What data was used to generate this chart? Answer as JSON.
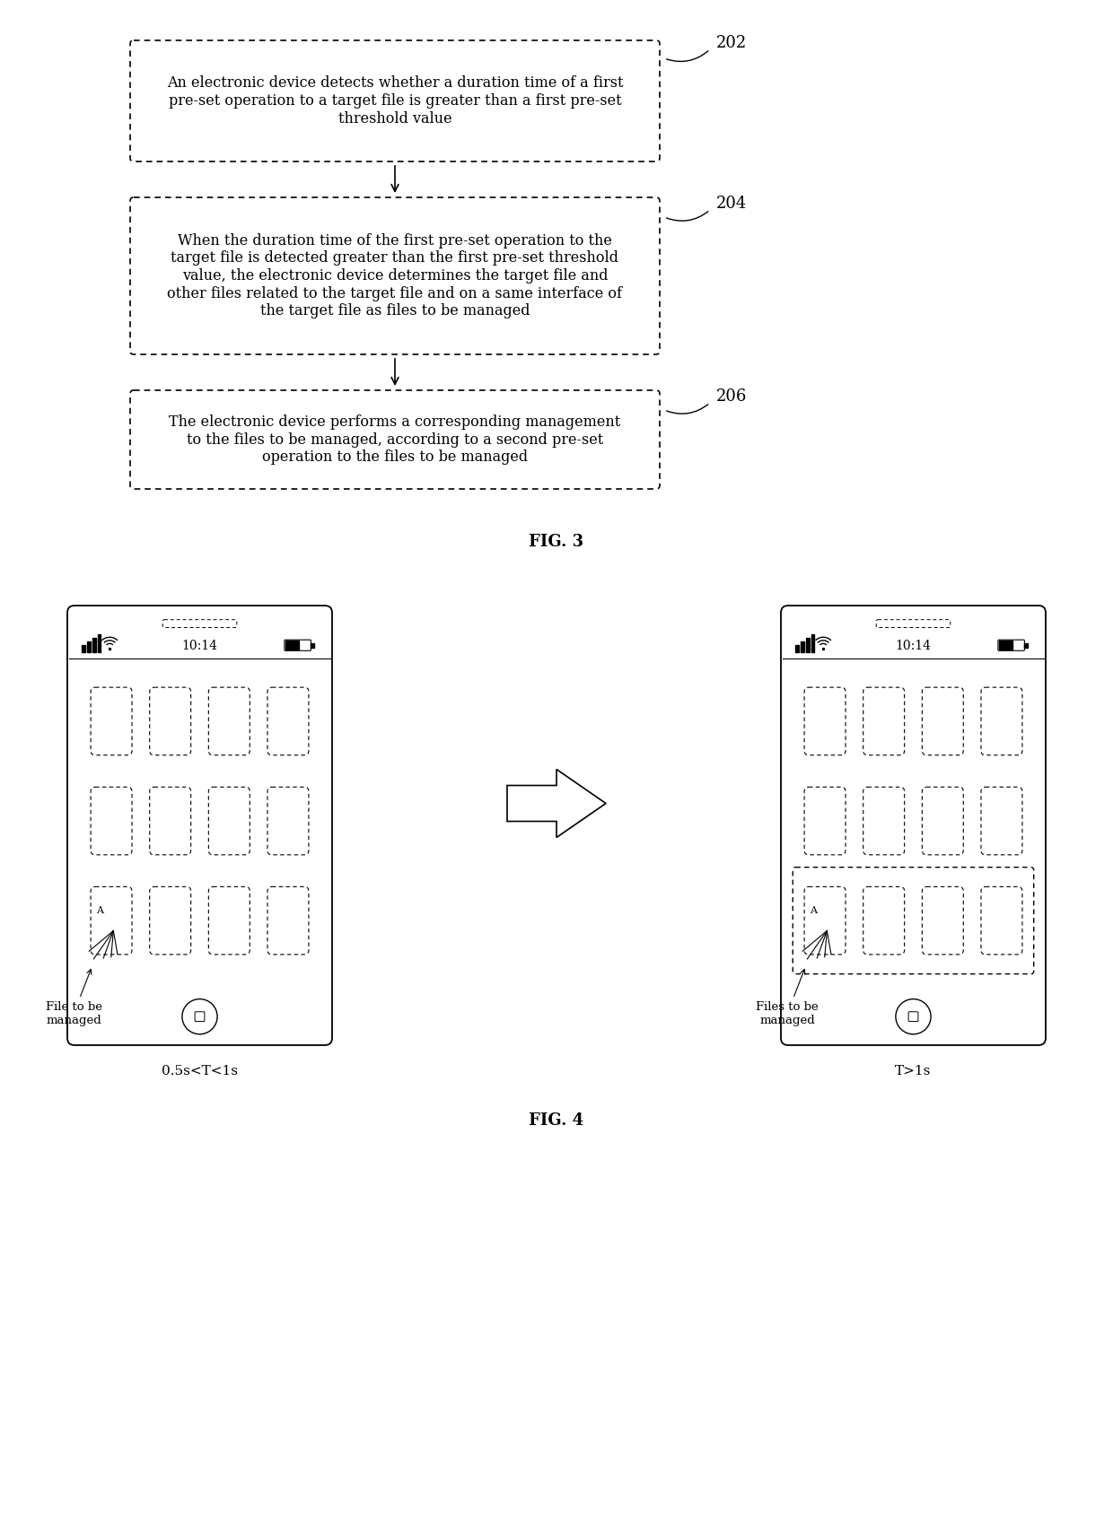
{
  "fig3_boxes": [
    {
      "text": "An electronic device detects whether a duration time of a first\npre-set operation to a target file is greater than a first pre-set\nthreshold value",
      "label": "202"
    },
    {
      "text": "When the duration time of the first pre-set operation to the\ntarget file is detected greater than the first pre-set threshold\nvalue, the electronic device determines the target file and\nother files related to the target file and on a same interface of\nthe target file as files to be managed",
      "label": "204"
    },
    {
      "text": "The electronic device performs a corresponding management\nto the files to be managed, according to a second pre-set\noperation to the files to be managed",
      "label": "206"
    }
  ],
  "fig3_label": "FIG. 3",
  "fig4_label": "FIG. 4",
  "phone_label_left": "0.5s<T<1s",
  "phone_label_right": "T>1s",
  "annotation_left": "File to be\nmanaged",
  "annotation_right": "Files to be\nmanaged",
  "time_display": "10:14",
  "background_color": "#ffffff",
  "body_fontsize": 11.5,
  "label_fontsize": 13,
  "fig_label_fontsize": 13
}
